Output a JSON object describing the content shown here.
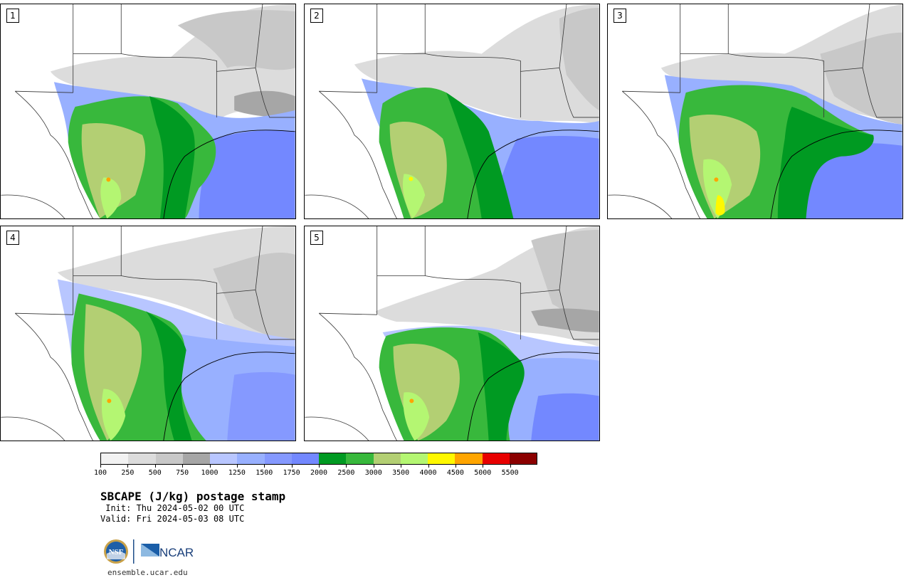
{
  "panels": [
    {
      "label": "1"
    },
    {
      "label": "2"
    },
    {
      "label": "3"
    },
    {
      "label": "4"
    },
    {
      "label": "5"
    }
  ],
  "colorbar": {
    "tick_labels": [
      "100",
      "250",
      "500",
      "750",
      "1000",
      "1250",
      "1500",
      "1750",
      "2000",
      "2500",
      "3000",
      "3500",
      "4000",
      "4500",
      "5000",
      "5500"
    ],
    "colors": [
      "#f2f2f2",
      "#dcdcdc",
      "#c8c8c8",
      "#a6a6a6",
      "#b8c6ff",
      "#98b0ff",
      "#8599ff",
      "#7388ff",
      "#009a22",
      "#38b83c",
      "#b3cf73",
      "#b4f672",
      "#fff800",
      "#ffa500",
      "#e80000",
      "#8b0000"
    ]
  },
  "title": "SBCAPE (J/kg) postage stamp",
  "init_line": " Init: Thu 2024-05-02 00 UTC",
  "valid_line": "Valid: Fri 2024-05-03 08 UTC",
  "logos": {
    "nsf": "NSF",
    "ncar": "NCAR"
  },
  "site": "ensemble.ucar.edu",
  "icons": [
    "nsf-logo-icon",
    "ncar-logo-icon"
  ]
}
